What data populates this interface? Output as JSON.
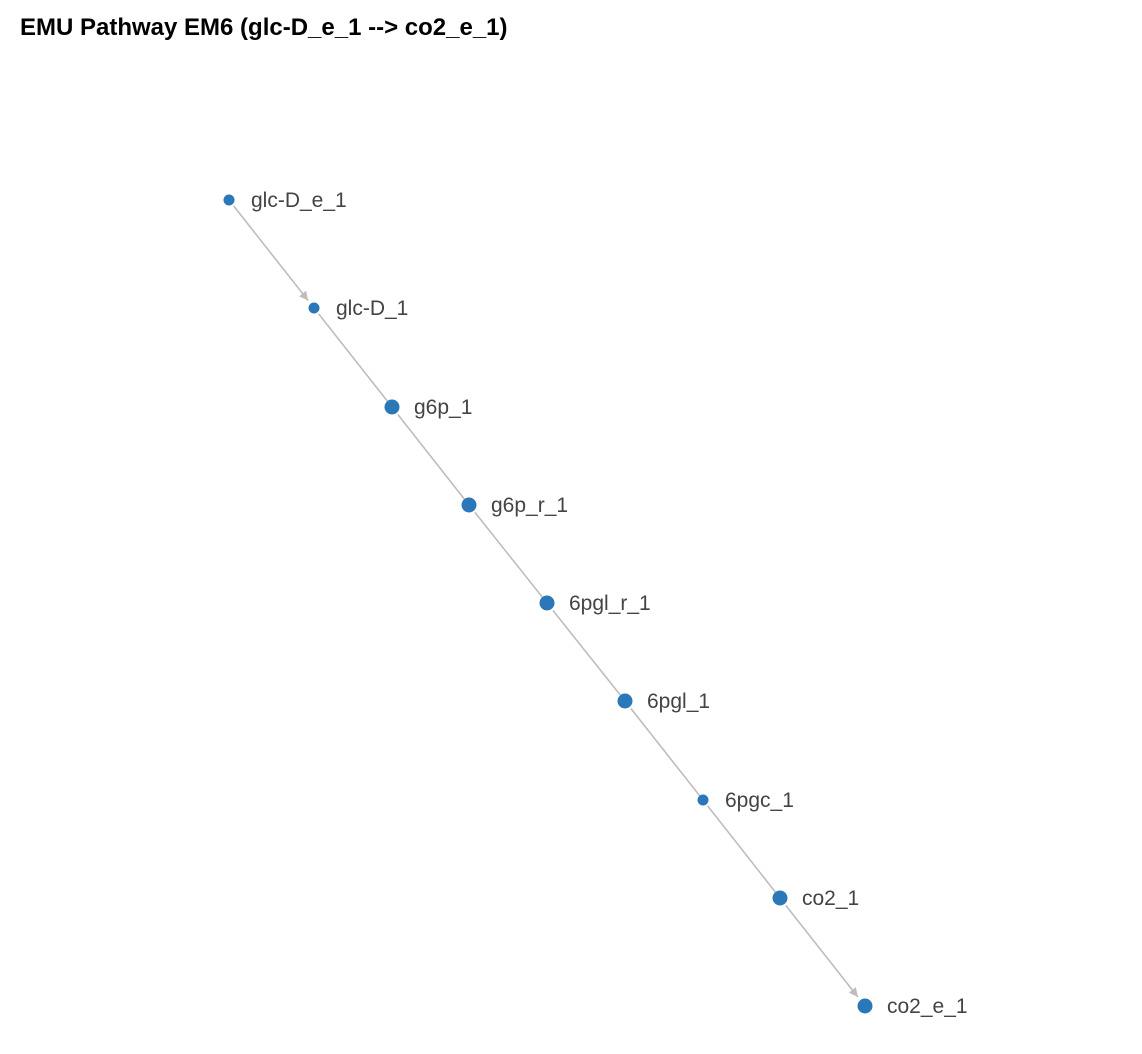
{
  "title": "EMU Pathway EM6 (glc-D_e_1 --> co2_e_1)",
  "colors": {
    "node": "#2b78b8",
    "edge": "#bdbdbd",
    "label": "#444444"
  },
  "nodes": [
    {
      "id": "glc-D_e_1",
      "label": "glc-D_e_1",
      "size": "small"
    },
    {
      "id": "glc-D_1",
      "label": "glc-D_1",
      "size": "small"
    },
    {
      "id": "g6p_1",
      "label": "g6p_1",
      "size": "large"
    },
    {
      "id": "g6p_r_1",
      "label": "g6p_r_1",
      "size": "large"
    },
    {
      "id": "6pgl_r_1",
      "label": "6pgl_r_1",
      "size": "large"
    },
    {
      "id": "6pgl_1",
      "label": "6pgl_1",
      "size": "large"
    },
    {
      "id": "6pgc_1",
      "label": "6pgc_1",
      "size": "small"
    },
    {
      "id": "co2_1",
      "label": "co2_1",
      "size": "large"
    },
    {
      "id": "co2_e_1",
      "label": "co2_e_1",
      "size": "large"
    }
  ],
  "edges": [
    {
      "source": "glc-D_e_1",
      "target": "glc-D_1",
      "arrow": true
    },
    {
      "source": "glc-D_1",
      "target": "g6p_1",
      "arrow": false
    },
    {
      "source": "g6p_1",
      "target": "g6p_r_1",
      "arrow": false
    },
    {
      "source": "g6p_r_1",
      "target": "6pgl_r_1",
      "arrow": false
    },
    {
      "source": "6pgl_r_1",
      "target": "6pgl_1",
      "arrow": false
    },
    {
      "source": "6pgl_1",
      "target": "6pgc_1",
      "arrow": false
    },
    {
      "source": "6pgc_1",
      "target": "co2_1",
      "arrow": false
    },
    {
      "source": "co2_1",
      "target": "co2_e_1",
      "arrow": true
    }
  ]
}
